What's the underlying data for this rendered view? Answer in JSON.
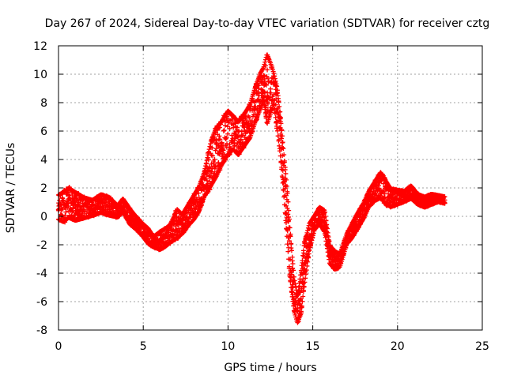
{
  "chart_data": {
    "type": "scatter",
    "title": "Day 267 of 2024, Sidereal Day-to-day VTEC variation (SDTVAR) for receiver cztg",
    "xlabel": "GPS time / hours",
    "ylabel": "SDTVAR / TECUs",
    "xlim": [
      0,
      25
    ],
    "ylim": [
      -8,
      12
    ],
    "xticks": [
      0,
      5,
      10,
      15,
      20,
      25
    ],
    "yticks": [
      -8,
      -6,
      -4,
      -2,
      0,
      2,
      4,
      6,
      8,
      10,
      12
    ],
    "grid": true,
    "marker": "+",
    "color": "#ff0000",
    "series": [
      {
        "name": "SDTVAR cztg",
        "envelope": {
          "x": [
            0.0,
            0.3,
            0.6,
            1.0,
            1.5,
            2.0,
            2.5,
            3.0,
            3.5,
            3.8,
            4.2,
            4.6,
            5.0,
            5.3,
            5.6,
            6.0,
            6.3,
            6.6,
            7.0,
            7.3,
            7.6,
            8.0,
            8.3,
            8.6,
            9.0,
            9.3,
            9.6,
            10.0,
            10.3,
            10.6,
            11.0,
            11.3,
            11.6,
            11.9,
            12.1,
            12.3,
            12.5,
            12.7,
            12.9,
            13.1,
            13.3,
            13.5,
            13.7,
            13.9,
            14.1,
            14.3,
            14.5,
            14.8,
            15.1,
            15.4,
            15.7,
            16.0,
            16.3,
            16.6,
            17.0,
            17.3,
            17.6,
            18.0,
            18.3,
            18.6,
            19.0,
            19.3,
            19.6,
            20.0,
            20.4,
            20.8,
            21.2,
            21.6,
            22.0,
            22.4,
            22.8
          ],
          "low": [
            -0.3,
            -0.5,
            -0.2,
            -0.4,
            -0.2,
            0.0,
            0.2,
            0.0,
            -0.1,
            0.3,
            -0.6,
            -1.0,
            -1.5,
            -2.0,
            -2.2,
            -2.4,
            -2.2,
            -1.9,
            -1.6,
            -1.3,
            -0.8,
            -0.3,
            0.3,
            1.3,
            2.0,
            2.6,
            3.4,
            4.2,
            4.6,
            4.2,
            4.9,
            5.4,
            6.5,
            7.4,
            8.1,
            6.2,
            7.0,
            7.8,
            6.0,
            4.0,
            1.2,
            -2.0,
            -5.0,
            -6.8,
            -7.6,
            -7.0,
            -5.0,
            -2.5,
            -1.0,
            -0.6,
            -1.2,
            -3.4,
            -3.8,
            -3.6,
            -2.0,
            -1.6,
            -1.0,
            -0.2,
            0.6,
            1.0,
            1.2,
            0.8,
            0.6,
            0.8,
            1.0,
            1.2,
            0.8,
            0.6,
            0.8,
            1.0,
            0.9
          ],
          "high": [
            1.6,
            1.8,
            2.1,
            1.8,
            1.4,
            1.2,
            1.6,
            1.4,
            0.8,
            1.3,
            0.6,
            0.0,
            -0.5,
            -0.8,
            -1.4,
            -1.0,
            -0.8,
            -0.5,
            0.6,
            0.2,
            0.8,
            1.6,
            2.2,
            3.2,
            5.5,
            6.4,
            6.8,
            7.6,
            7.2,
            6.8,
            7.4,
            8.0,
            9.2,
            10.2,
            10.6,
            11.7,
            11.0,
            10.2,
            9.2,
            7.0,
            4.5,
            2.0,
            -1.5,
            -4.2,
            -5.5,
            -3.8,
            -1.8,
            -0.4,
            0.1,
            0.7,
            0.5,
            -2.0,
            -2.4,
            -2.6,
            -1.2,
            -0.5,
            0.2,
            1.0,
            1.8,
            2.4,
            3.2,
            2.6,
            2.0,
            1.9,
            1.8,
            2.2,
            1.6,
            1.4,
            1.6,
            1.5,
            1.4
          ]
        }
      }
    ]
  }
}
